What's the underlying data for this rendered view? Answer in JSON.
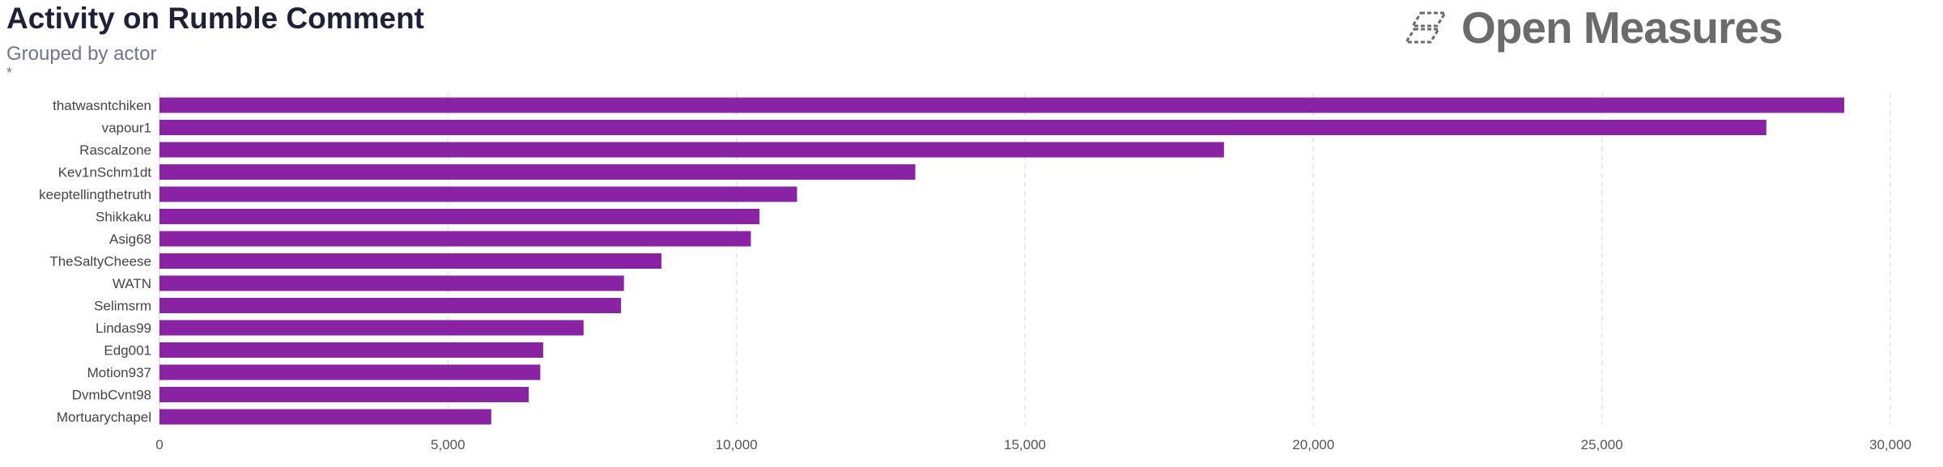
{
  "header": {
    "title": "Activity on Rumble Comment",
    "subtitle": "Grouped by actor",
    "note": "*"
  },
  "logo": {
    "text": "Open Measures",
    "icon": "open-measures-logo-icon"
  },
  "colors": {
    "bar": "#8a23a3",
    "grid": "#e3e3e3",
    "axis": "#cfcfcf"
  },
  "chart_data": {
    "type": "bar",
    "orientation": "horizontal",
    "title": "Activity on Rumble Comment",
    "subtitle": "Grouped by actor",
    "xlabel": "",
    "ylabel": "",
    "xlim": [
      0,
      30000
    ],
    "x_ticks": [
      0,
      5000,
      10000,
      15000,
      20000,
      25000,
      30000
    ],
    "x_tick_labels": [
      "0",
      "5,000",
      "10,000",
      "15,000",
      "20,000",
      "25,000",
      "30,000"
    ],
    "grid": true,
    "legend": "none",
    "categories": [
      "thatwasntchiken",
      "vapour1",
      "Rascalzone",
      "Kev1nSchm1dt",
      "keeptellingthetruth",
      "Shikkaku",
      "Asig68",
      "TheSaltyCheese",
      "WATN",
      "Selimsrm",
      "Lindas99",
      "Edg001",
      "Motion937",
      "DvmbCvnt98",
      "Mortuarychapel"
    ],
    "values": [
      29200,
      27850,
      18450,
      13100,
      11050,
      10400,
      10250,
      8700,
      8050,
      8000,
      7350,
      6650,
      6600,
      6400,
      5750
    ]
  }
}
